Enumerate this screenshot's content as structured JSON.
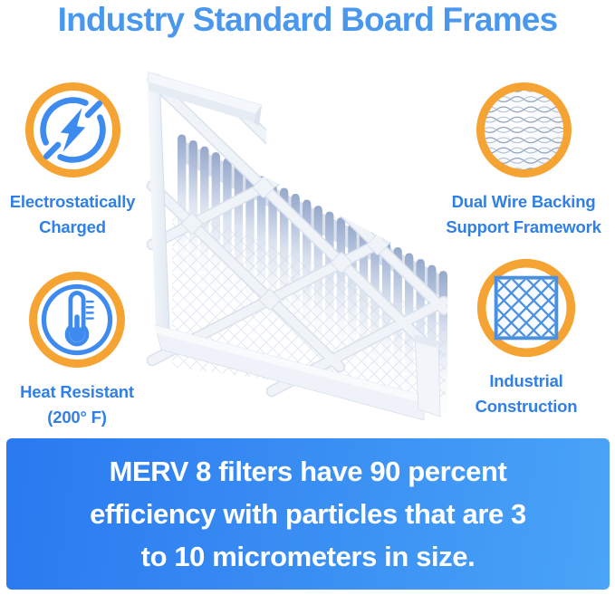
{
  "title": "Industry Standard Board Frames",
  "features": [
    {
      "icon": "lightning-circle-icon",
      "label_line1": "Electrostatically",
      "label_line2": "Charged"
    },
    {
      "icon": "wire-mesh-photo-icon",
      "label_line1": "Dual Wire Backing",
      "label_line2": "Support Framework"
    },
    {
      "icon": "thermometer-icon",
      "label_line1": "Heat Resistant",
      "label_line2": "(200° F)"
    },
    {
      "icon": "mesh-grid-icon",
      "label_line1": "Industrial",
      "label_line2": "Construction"
    }
  ],
  "banner": {
    "line1": "MERV 8 filters have 90 percent",
    "line2": "efficiency with particles that are 3",
    "line3": "to 10 micrometers in size."
  },
  "product_image": {
    "description": "White pleated air filter with industry standard board frame and diagonal support lattice"
  },
  "colors": {
    "accent_orange": "#F5A433",
    "title_blue": "#4a97ee",
    "label_blue": "#3080e8",
    "icon_blue": "#3E8BEF",
    "banner_gradient_start": "#2a79f0",
    "banner_gradient_end": "#4aa4f7"
  }
}
